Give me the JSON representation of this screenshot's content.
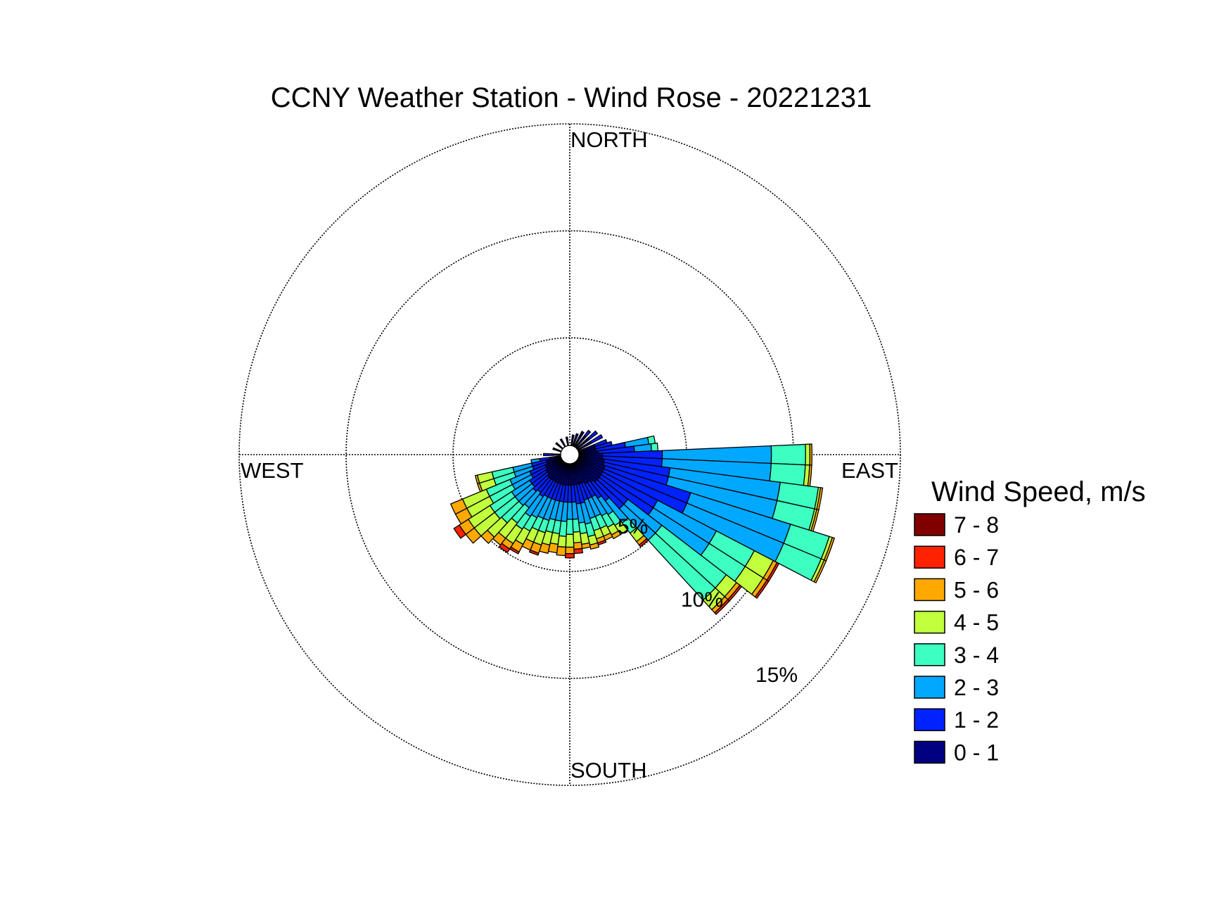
{
  "chart_data": {
    "type": "wind_rose",
    "title": "CCNY Weather Station - Wind Rose - 20221231",
    "direction_labels": {
      "north": "NORTH",
      "east": "EAST",
      "south": "SOUTH",
      "west": "WEST"
    },
    "radial_ticks": [
      {
        "value": 5,
        "label": "5%"
      },
      {
        "value": 10,
        "label": "10%"
      },
      {
        "value": 15,
        "label": "15%"
      }
    ],
    "rmax": 15.5,
    "legend": {
      "title": "Wind Speed, m/s",
      "bins": [
        {
          "label": "0 - 1",
          "color": "#000080"
        },
        {
          "label": "1 - 2",
          "color": "#0022ff"
        },
        {
          "label": "2 - 3",
          "color": "#00a8ff"
        },
        {
          "label": "3 - 4",
          "color": "#3dffc2"
        },
        {
          "label": "4 - 5",
          "color": "#c2ff3d"
        },
        {
          "label": "5 - 6",
          "color": "#ffa800"
        },
        {
          "label": "6 - 7",
          "color": "#ff2200"
        },
        {
          "label": "7 - 8",
          "color": "#800000"
        }
      ]
    },
    "bin_width_deg": 5,
    "sectors": [
      {
        "direction_deg": 10,
        "cumulative_pct": [
          0.5
        ]
      },
      {
        "direction_deg": 20,
        "cumulative_pct": [
          0.6
        ]
      },
      {
        "direction_deg": 30,
        "cumulative_pct": [
          0.8
        ]
      },
      {
        "direction_deg": 40,
        "cumulative_pct": [
          0.7,
          1.0
        ]
      },
      {
        "direction_deg": 50,
        "cumulative_pct": [
          0.7,
          1.2
        ]
      },
      {
        "direction_deg": 60,
        "cumulative_pct": [
          0.7,
          1.3
        ]
      },
      {
        "direction_deg": 70,
        "cumulative_pct": [
          0.8,
          1.4
        ]
      },
      {
        "direction_deg": 75,
        "cumulative_pct": [
          0.8,
          1.6
        ]
      },
      {
        "direction_deg": 80,
        "cumulative_pct": [
          0.8,
          2.2,
          3.3,
          3.6
        ]
      },
      {
        "direction_deg": 85,
        "cumulative_pct": [
          0.9,
          2.6,
          3.4,
          3.7
        ]
      },
      {
        "direction_deg": 90,
        "cumulative_pct": [
          1.1,
          3.9,
          9.0,
          10.6,
          10.8,
          10.9
        ]
      },
      {
        "direction_deg": 95,
        "cumulative_pct": [
          1.1,
          3.9,
          9.0,
          10.6,
          10.8,
          10.9
        ]
      },
      {
        "direction_deg": 100,
        "cumulative_pct": [
          1.2,
          4.3,
          9.5,
          11.3,
          11.4,
          11.5
        ]
      },
      {
        "direction_deg": 105,
        "cumulative_pct": [
          1.2,
          4.3,
          9.5,
          11.3,
          11.4,
          11.5
        ]
      },
      {
        "direction_deg": 110,
        "cumulative_pct": [
          1.3,
          5.5,
          10.4,
          12.3,
          12.45,
          12.55
        ]
      },
      {
        "direction_deg": 115,
        "cumulative_pct": [
          1.3,
          5.5,
          10.4,
          12.3,
          12.45,
          12.55
        ]
      },
      {
        "direction_deg": 120,
        "cumulative_pct": [
          1.3,
          4.2,
          7.3,
          9.3,
          10.3,
          10.5,
          10.6
        ]
      },
      {
        "direction_deg": 125,
        "cumulative_pct": [
          1.3,
          4.2,
          7.3,
          9.3,
          10.3,
          10.5,
          10.6
        ]
      },
      {
        "direction_deg": 130,
        "cumulative_pct": [
          1.3,
          3.0,
          5.0,
          8.8,
          9.4,
          9.6,
          9.7
        ]
      },
      {
        "direction_deg": 135,
        "cumulative_pct": [
          1.3,
          3.0,
          5.0,
          8.8,
          9.4,
          9.6,
          9.7
        ]
      },
      {
        "direction_deg": 140,
        "cumulative_pct": [
          1.2,
          2.3,
          3.6,
          4.2,
          4.7,
          4.9,
          5.0
        ]
      },
      {
        "direction_deg": 145,
        "cumulative_pct": [
          1.1,
          2.0,
          2.9,
          3.5,
          4.0
        ]
      },
      {
        "direction_deg": 150,
        "cumulative_pct": [
          1.1,
          1.8,
          2.8,
          3.4,
          3.8,
          4.0
        ]
      },
      {
        "direction_deg": 155,
        "cumulative_pct": [
          1.0,
          1.8,
          2.7,
          3.3,
          3.7,
          3.9
        ]
      },
      {
        "direction_deg": 160,
        "cumulative_pct": [
          1.0,
          1.8,
          2.7,
          3.3,
          3.7,
          3.9,
          4.0
        ]
      },
      {
        "direction_deg": 165,
        "cumulative_pct": [
          1.0,
          1.9,
          2.9,
          3.5,
          3.9,
          4.1
        ]
      },
      {
        "direction_deg": 170,
        "cumulative_pct": [
          1.0,
          1.9,
          2.8,
          3.3,
          3.8,
          4.0
        ]
      },
      {
        "direction_deg": 175,
        "cumulative_pct": [
          1.0,
          1.8,
          2.6,
          3.2,
          3.7,
          4.0,
          4.2
        ]
      },
      {
        "direction_deg": 180,
        "cumulative_pct": [
          1.0,
          1.8,
          2.6,
          3.3,
          3.9,
          4.2,
          4.4
        ]
      },
      {
        "direction_deg": 185,
        "cumulative_pct": [
          1.0,
          1.8,
          2.7,
          3.4,
          3.9,
          4.3
        ]
      },
      {
        "direction_deg": 190,
        "cumulative_pct": [
          1.0,
          1.8,
          2.7,
          3.3,
          3.8,
          4.2
        ]
      },
      {
        "direction_deg": 195,
        "cumulative_pct": [
          1.0,
          1.8,
          2.7,
          3.3,
          3.9,
          4.3
        ]
      },
      {
        "direction_deg": 200,
        "cumulative_pct": [
          1.0,
          1.8,
          2.8,
          3.4,
          4.0,
          4.4,
          4.5
        ]
      },
      {
        "direction_deg": 205,
        "cumulative_pct": [
          1.0,
          1.8,
          2.8,
          3.4,
          4.0,
          4.4
        ]
      },
      {
        "direction_deg": 210,
        "cumulative_pct": [
          1.0,
          1.8,
          2.9,
          3.6,
          4.3,
          4.7,
          4.8
        ]
      },
      {
        "direction_deg": 215,
        "cumulative_pct": [
          1.0,
          1.9,
          3.0,
          3.7,
          4.5,
          4.8,
          5.0
        ]
      },
      {
        "direction_deg": 220,
        "cumulative_pct": [
          1.0,
          1.8,
          2.7,
          3.6,
          4.5,
          4.9
        ]
      },
      {
        "direction_deg": 225,
        "cumulative_pct": [
          1.0,
          1.9,
          2.8,
          3.9,
          4.8,
          5.2
        ]
      },
      {
        "direction_deg": 230,
        "cumulative_pct": [
          0.9,
          1.8,
          2.8,
          4.0,
          5.2,
          5.7
        ]
      },
      {
        "direction_deg": 235,
        "cumulative_pct": [
          0.9,
          1.8,
          2.8,
          4.0,
          5.2,
          5.7,
          6.0
        ]
      },
      {
        "direction_deg": 240,
        "cumulative_pct": [
          0.8,
          1.6,
          2.6,
          3.8,
          5.0,
          5.6
        ]
      },
      {
        "direction_deg": 245,
        "cumulative_pct": [
          0.8,
          1.6,
          2.6,
          3.8,
          5.0,
          5.6
        ]
      },
      {
        "direction_deg": 250,
        "cumulative_pct": [
          0.7,
          1.4,
          2.3,
          3.3,
          4.0,
          4.1
        ]
      },
      {
        "direction_deg": 255,
        "cumulative_pct": [
          0.7,
          1.4,
          2.3,
          3.3,
          4.0,
          4.1
        ]
      },
      {
        "direction_deg": 260,
        "cumulative_pct": [
          0.5,
          1.0,
          1.4
        ]
      },
      {
        "direction_deg": 270,
        "cumulative_pct": [
          0.4,
          0.8
        ]
      },
      {
        "direction_deg": 290,
        "cumulative_pct": [
          0.4
        ]
      },
      {
        "direction_deg": 310,
        "cumulative_pct": [
          0.4
        ]
      },
      {
        "direction_deg": 330,
        "cumulative_pct": [
          0.4
        ]
      },
      {
        "direction_deg": 350,
        "cumulative_pct": [
          0.4
        ]
      }
    ]
  }
}
